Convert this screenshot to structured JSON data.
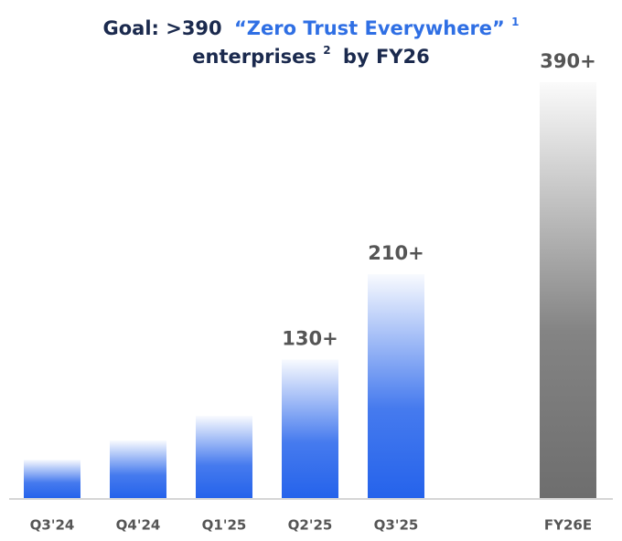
{
  "chart_data": {
    "type": "bar",
    "title": {
      "goal": "Goal: >390",
      "highlight": "“Zero Trust Everywhere”",
      "note1": "1",
      "line2": "enterprises",
      "note2": "2",
      "tail": "by FY26"
    },
    "categories": [
      "Q3'24",
      "Q4'24",
      "Q1'25",
      "Q2'25",
      "Q3'25",
      "FY26E"
    ],
    "values": [
      36,
      54,
      77,
      130,
      210,
      390
    ],
    "value_labels": [
      null,
      null,
      null,
      "130+",
      "210+",
      "390+"
    ],
    "colors": [
      "#2563eb",
      "#2563eb",
      "#2563eb",
      "#2563eb",
      "#2563eb",
      "#6e6e6e"
    ]
  }
}
